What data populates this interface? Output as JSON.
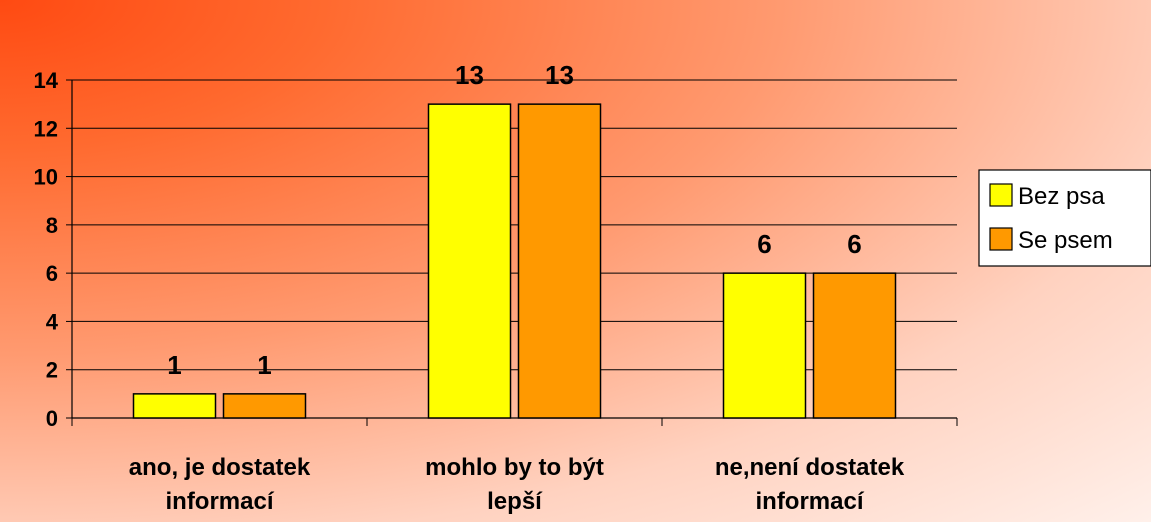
{
  "chart_data": {
    "type": "bar",
    "categories": [
      [
        "ano, je dostatek",
        "informací"
      ],
      [
        "mohlo by to být",
        "lepší"
      ],
      [
        "ne,není dostatek",
        "informací"
      ]
    ],
    "series": [
      {
        "name": "Bez psa",
        "values": [
          1,
          13,
          6
        ],
        "color": "#ffff00"
      },
      {
        "name": "Se psem",
        "values": [
          1,
          13,
          6
        ],
        "color": "#ff9900"
      }
    ],
    "y_ticks": [
      "0",
      "2",
      "4",
      "6",
      "8",
      "10",
      "12",
      "14"
    ],
    "ylim": [
      0,
      14
    ],
    "data_labels": true,
    "grid": true,
    "legend_position": "right"
  }
}
